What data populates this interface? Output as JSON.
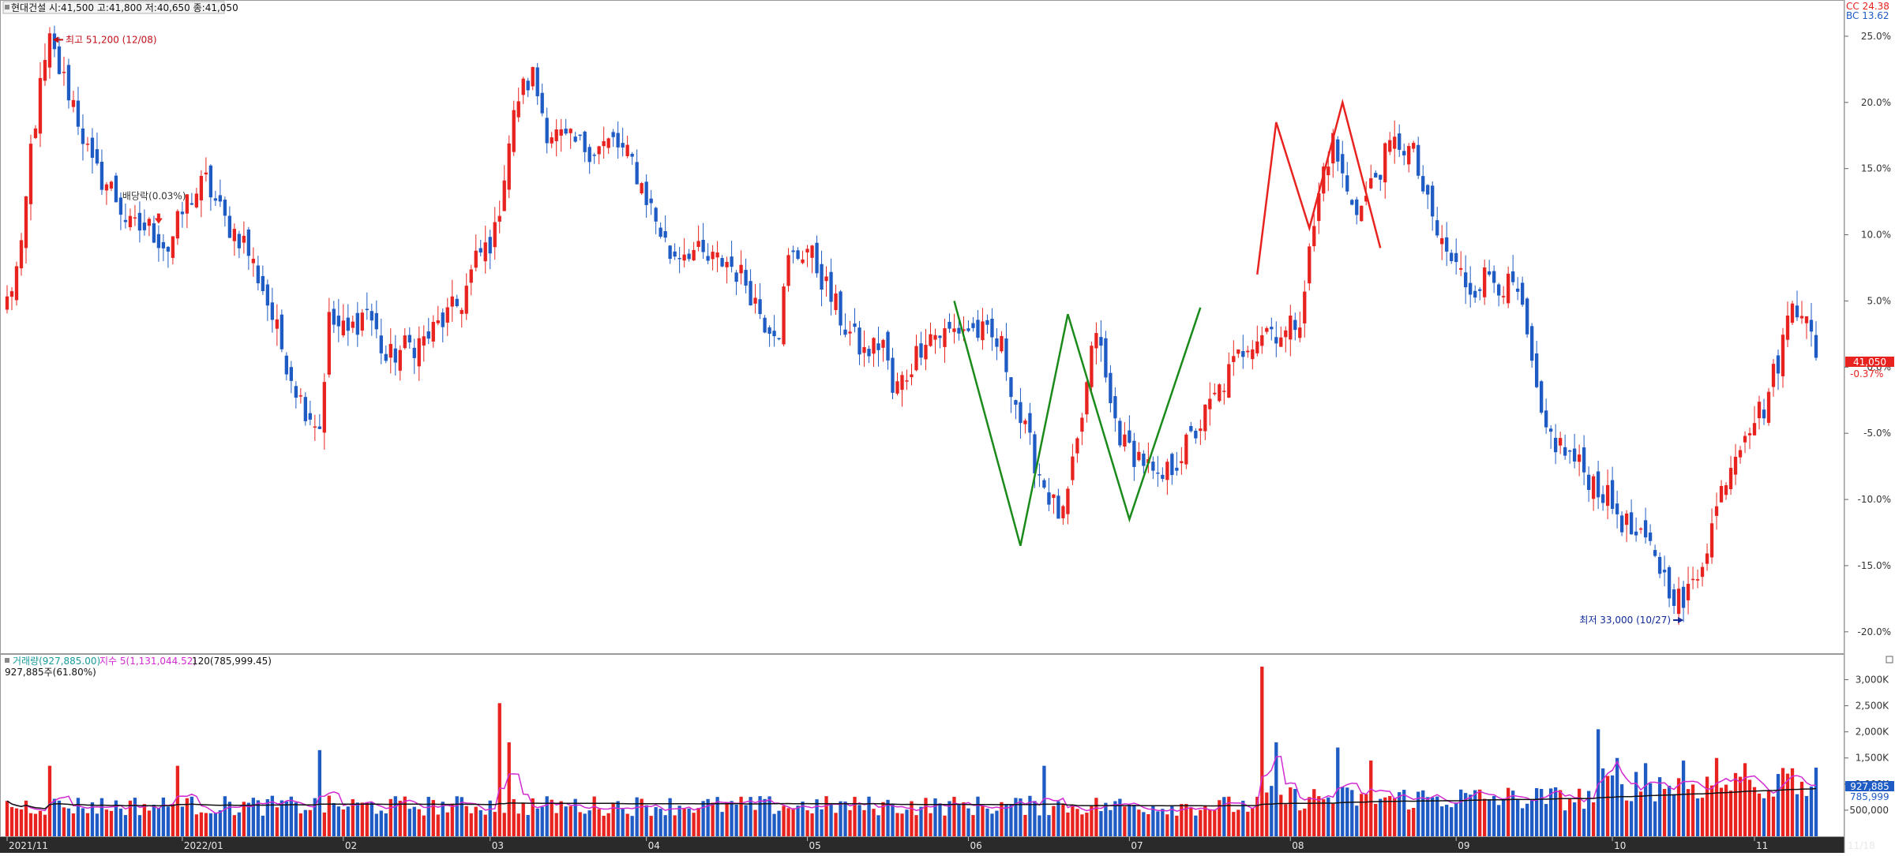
{
  "colors": {
    "up": "#e8231f",
    "down": "#1f5bc4",
    "pattern": "#1a8a1a",
    "pattern_red": "#e8231f",
    "ma_short": "#d22ad2",
    "ma_long": "#111111",
    "price_tag": "#e8231f",
    "vol_tag": "#1f5bc4"
  },
  "price_panel": {
    "header": "현대건설 시:41,500 고:41,800 저:40,650 종:41,050",
    "high_label": "최고 51,200 (12/08)",
    "low_label": "최저 33,000 (10/27)",
    "dividend_label": "배당락(0.03%)",
    "corner_top": "CC 24.38",
    "corner_bottom": "BC 13.62",
    "price_tag": "41,050",
    "price_tag_sub": "-0.37%"
  },
  "volume_panel": {
    "legend_volume": "거래량(927,885.00)",
    "legend_ma5": "지수 5(1,131,044.52)",
    "legend_ma120": "120(785,999.45)",
    "sub_label": "927,885주(61.80%)",
    "volume_tag": "927,885",
    "volume_tag_sub": "785,999"
  },
  "chart_data": [
    {
      "type": "candlestick",
      "title": "현대건설",
      "ylabel": "",
      "y_axis_unit": "%",
      "ylim": [
        -21.5,
        27.5
      ],
      "y_ticks": [
        "25.0%",
        "20.0%",
        "15.0%",
        "10.0%",
        "5.0%",
        "0.0%",
        "-5.0%",
        "-10.0%",
        "-15.0%",
        "-20.0%"
      ],
      "y_tick_values": [
        25,
        20,
        15,
        10,
        5,
        0,
        -5,
        -10,
        -15,
        -20
      ],
      "x_ticks": [
        "2021/11",
        "2022/01",
        "02",
        "03",
        "04",
        "05",
        "06",
        "07",
        "08",
        "09",
        "10",
        "11"
      ],
      "x_tick_index": [
        0,
        37,
        71,
        102,
        135,
        169,
        203,
        237,
        271,
        306,
        339,
        369
      ],
      "end_label": "11/18",
      "anchors": [
        [
          0,
          5.0
        ],
        [
          3,
          8.5
        ],
        [
          5,
          16.5
        ],
        [
          7,
          21.0
        ],
        [
          9,
          24.5
        ],
        [
          11,
          22.5
        ],
        [
          14,
          20.0
        ],
        [
          18,
          15.0
        ],
        [
          22,
          13.5
        ],
        [
          26,
          10.5
        ],
        [
          30,
          10.5
        ],
        [
          34,
          9.0
        ],
        [
          38,
          12.5
        ],
        [
          42,
          14.0
        ],
        [
          46,
          11.0
        ],
        [
          50,
          9.5
        ],
        [
          54,
          6.0
        ],
        [
          58,
          1.5
        ],
        [
          62,
          -2.5
        ],
        [
          66,
          -4.5
        ],
        [
          68,
          3.5
        ],
        [
          72,
          2.5
        ],
        [
          76,
          4.5
        ],
        [
          80,
          0.5
        ],
        [
          84,
          1.5
        ],
        [
          88,
          2.0
        ],
        [
          92,
          3.5
        ],
        [
          96,
          5.0
        ],
        [
          99,
          8.0
        ],
        [
          103,
          10.0
        ],
        [
          106,
          17.0
        ],
        [
          108,
          20.5
        ],
        [
          111,
          22.0
        ],
        [
          114,
          18.0
        ],
        [
          118,
          17.0
        ],
        [
          124,
          16.5
        ],
        [
          128,
          17.0
        ],
        [
          132,
          15.5
        ],
        [
          136,
          12.0
        ],
        [
          140,
          8.5
        ],
        [
          144,
          9.0
        ],
        [
          148,
          8.0
        ],
        [
          152,
          8.0
        ],
        [
          156,
          6.5
        ],
        [
          160,
          3.5
        ],
        [
          163,
          3.0
        ],
        [
          165,
          8.0
        ],
        [
          169,
          9.0
        ],
        [
          173,
          6.0
        ],
        [
          177,
          3.0
        ],
        [
          181,
          1.0
        ],
        [
          185,
          2.0
        ],
        [
          187,
          -2.0
        ],
        [
          190,
          -0.5
        ],
        [
          194,
          2.5
        ],
        [
          198,
          2.5
        ],
        [
          202,
          3.0
        ],
        [
          206,
          2.5
        ],
        [
          210,
          1.5
        ],
        [
          214,
          -4.0
        ],
        [
          218,
          -8.0
        ],
        [
          221,
          -10.5
        ],
        [
          223,
          -11.5
        ],
        [
          226,
          -6.0
        ],
        [
          230,
          3.0
        ],
        [
          233,
          -3.0
        ],
        [
          236,
          -6.0
        ],
        [
          240,
          -7.0
        ],
        [
          243,
          -9.0
        ],
        [
          246,
          -7.5
        ],
        [
          250,
          -5.5
        ],
        [
          254,
          -3.0
        ],
        [
          258,
          -0.5
        ],
        [
          262,
          2.0
        ],
        [
          266,
          3.0
        ],
        [
          270,
          2.5
        ],
        [
          273,
          4.0
        ],
        [
          275,
          8.5
        ],
        [
          278,
          15.0
        ],
        [
          280,
          17.0
        ],
        [
          283,
          13.0
        ],
        [
          286,
          12.0
        ],
        [
          289,
          14.5
        ],
        [
          292,
          16.5
        ],
        [
          294,
          17.0
        ],
        [
          297,
          16.0
        ],
        [
          300,
          12.0
        ],
        [
          302,
          10.0
        ],
        [
          305,
          8.0
        ],
        [
          309,
          6.0
        ],
        [
          313,
          7.0
        ],
        [
          317,
          6.0
        ],
        [
          319,
          5.5
        ],
        [
          322,
          0.0
        ],
        [
          324,
          -4.5
        ],
        [
          328,
          -6.0
        ],
        [
          332,
          -7.5
        ],
        [
          336,
          -9.0
        ],
        [
          340,
          -11.0
        ],
        [
          344,
          -13.0
        ],
        [
          348,
          -14.0
        ],
        [
          350,
          -16.0
        ],
        [
          352,
          -17.0
        ],
        [
          354,
          -18.0
        ],
        [
          357,
          -15.5
        ],
        [
          360,
          -12.0
        ],
        [
          363,
          -8.0
        ],
        [
          367,
          -4.5
        ],
        [
          371,
          -3.0
        ],
        [
          374,
          0.5
        ],
        [
          377,
          5.0
        ],
        [
          380,
          4.5
        ],
        [
          382,
          0.0
        ]
      ],
      "high_marker": {
        "index": 9,
        "value": 24.5
      },
      "low_marker": {
        "index": 355,
        "value": -19.0
      },
      "dividend_marker": {
        "index": 31,
        "value": 12.5
      },
      "pattern_lines": [
        {
          "points": [
            [
              200,
              5.0
            ],
            [
              214,
              -13.5
            ],
            [
              224,
              4.0
            ],
            [
              237,
              -11.5
            ],
            [
              252,
              4.5
            ]
          ]
        },
        {
          "points": [
            [
              264,
              7.0
            ],
            [
              268,
              18.5
            ],
            [
              275,
              10.5
            ],
            [
              282,
              20.0
            ],
            [
              290,
              9.0
            ]
          ]
        }
      ],
      "ma5_line": "magenta",
      "ma120_line": "black"
    },
    {
      "type": "bar",
      "title": "거래량",
      "ylim": [
        0,
        3400
      ],
      "y_ticks": [
        "3,000K",
        "2,500K",
        "2,000K",
        "1,500K",
        "1,000K",
        "500,000"
      ],
      "y_tick_values": [
        3000,
        2500,
        2000,
        1500,
        1000,
        500
      ],
      "spikes": [
        [
          9,
          1350
        ],
        [
          36,
          1350
        ],
        [
          66,
          1650
        ],
        [
          104,
          2550
        ],
        [
          106,
          1800
        ],
        [
          219,
          1350
        ],
        [
          265,
          3250
        ],
        [
          268,
          1800
        ],
        [
          281,
          1700
        ],
        [
          288,
          1450
        ],
        [
          336,
          2050
        ],
        [
          340,
          1500
        ],
        [
          346,
          1400
        ],
        [
          354,
          1450
        ],
        [
          361,
          1500
        ],
        [
          367,
          1400
        ],
        [
          376,
          1200
        ]
      ],
      "baseline_volume": 650
    }
  ]
}
